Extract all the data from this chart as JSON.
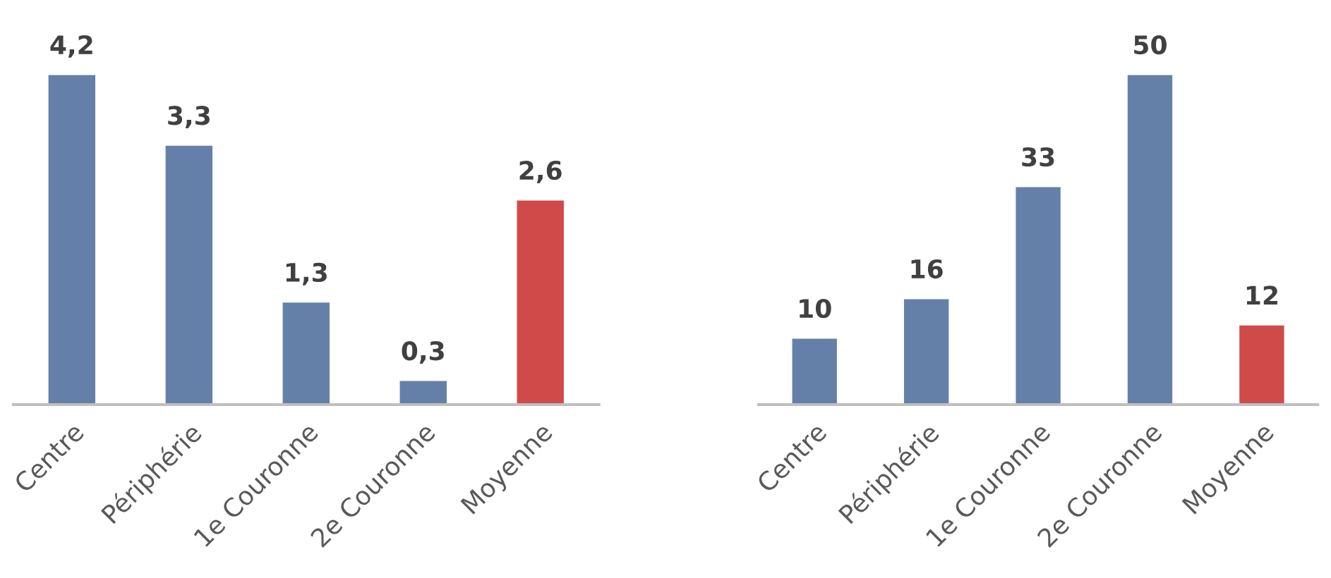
{
  "chart_data": [
    {
      "type": "bar",
      "categories": [
        "Centre",
        "Périphérie",
        "1e Couronne",
        "2e Couronne",
        "Moyenne"
      ],
      "values": [
        4.2,
        3.3,
        1.3,
        0.3,
        2.6
      ],
      "colors": [
        "#6580a8",
        "#6580a8",
        "#6580a8",
        "#6580a8",
        "#d04a4a"
      ],
      "value_labels": [
        "4,2",
        "3,3",
        "1,3",
        "0,3",
        "2,6"
      ],
      "grid": false,
      "legend": false
    },
    {
      "type": "bar",
      "categories": [
        "Centre",
        "Périphérie",
        "1e Couronne",
        "2e Couronne",
        "Moyenne"
      ],
      "values": [
        10,
        16,
        33,
        50,
        12
      ],
      "colors": [
        "#6580a8",
        "#6580a8",
        "#6580a8",
        "#6580a8",
        "#d04a4a"
      ],
      "value_labels": [
        "10",
        "16",
        "33",
        "50",
        "12"
      ],
      "grid": false,
      "legend": false
    }
  ]
}
